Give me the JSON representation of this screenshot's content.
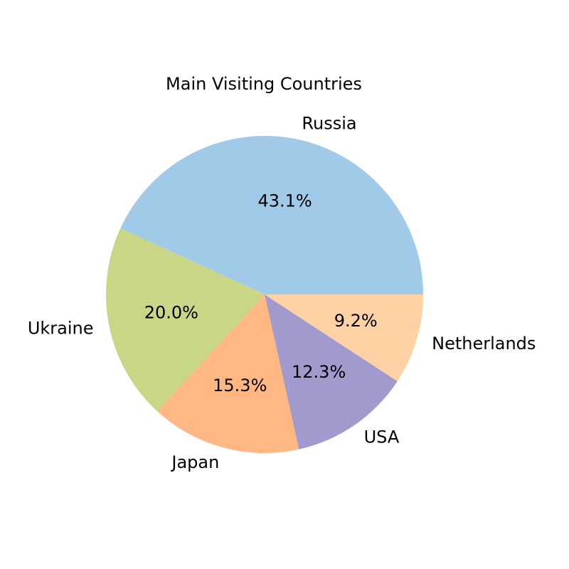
{
  "chart_data": {
    "type": "pie",
    "title": "Main Visiting Countries",
    "start_angle": "east",
    "direction": "counterclockwise",
    "slices": [
      {
        "label": "Russia",
        "value": 43.1,
        "pct_label": "43.1%",
        "color": "#a0cae8"
      },
      {
        "label": "Ukraine",
        "value": 20.0,
        "pct_label": "20.0%",
        "color": "#c8d686"
      },
      {
        "label": "Japan",
        "value": 15.3,
        "pct_label": "15.3%",
        "color": "#ffb784"
      },
      {
        "label": "USA",
        "value": 12.3,
        "pct_label": "12.3%",
        "color": "#a19acc"
      },
      {
        "label": "Netherlands",
        "value": 9.2,
        "pct_label": "9.2%",
        "color": "#ffd1a5"
      }
    ]
  }
}
